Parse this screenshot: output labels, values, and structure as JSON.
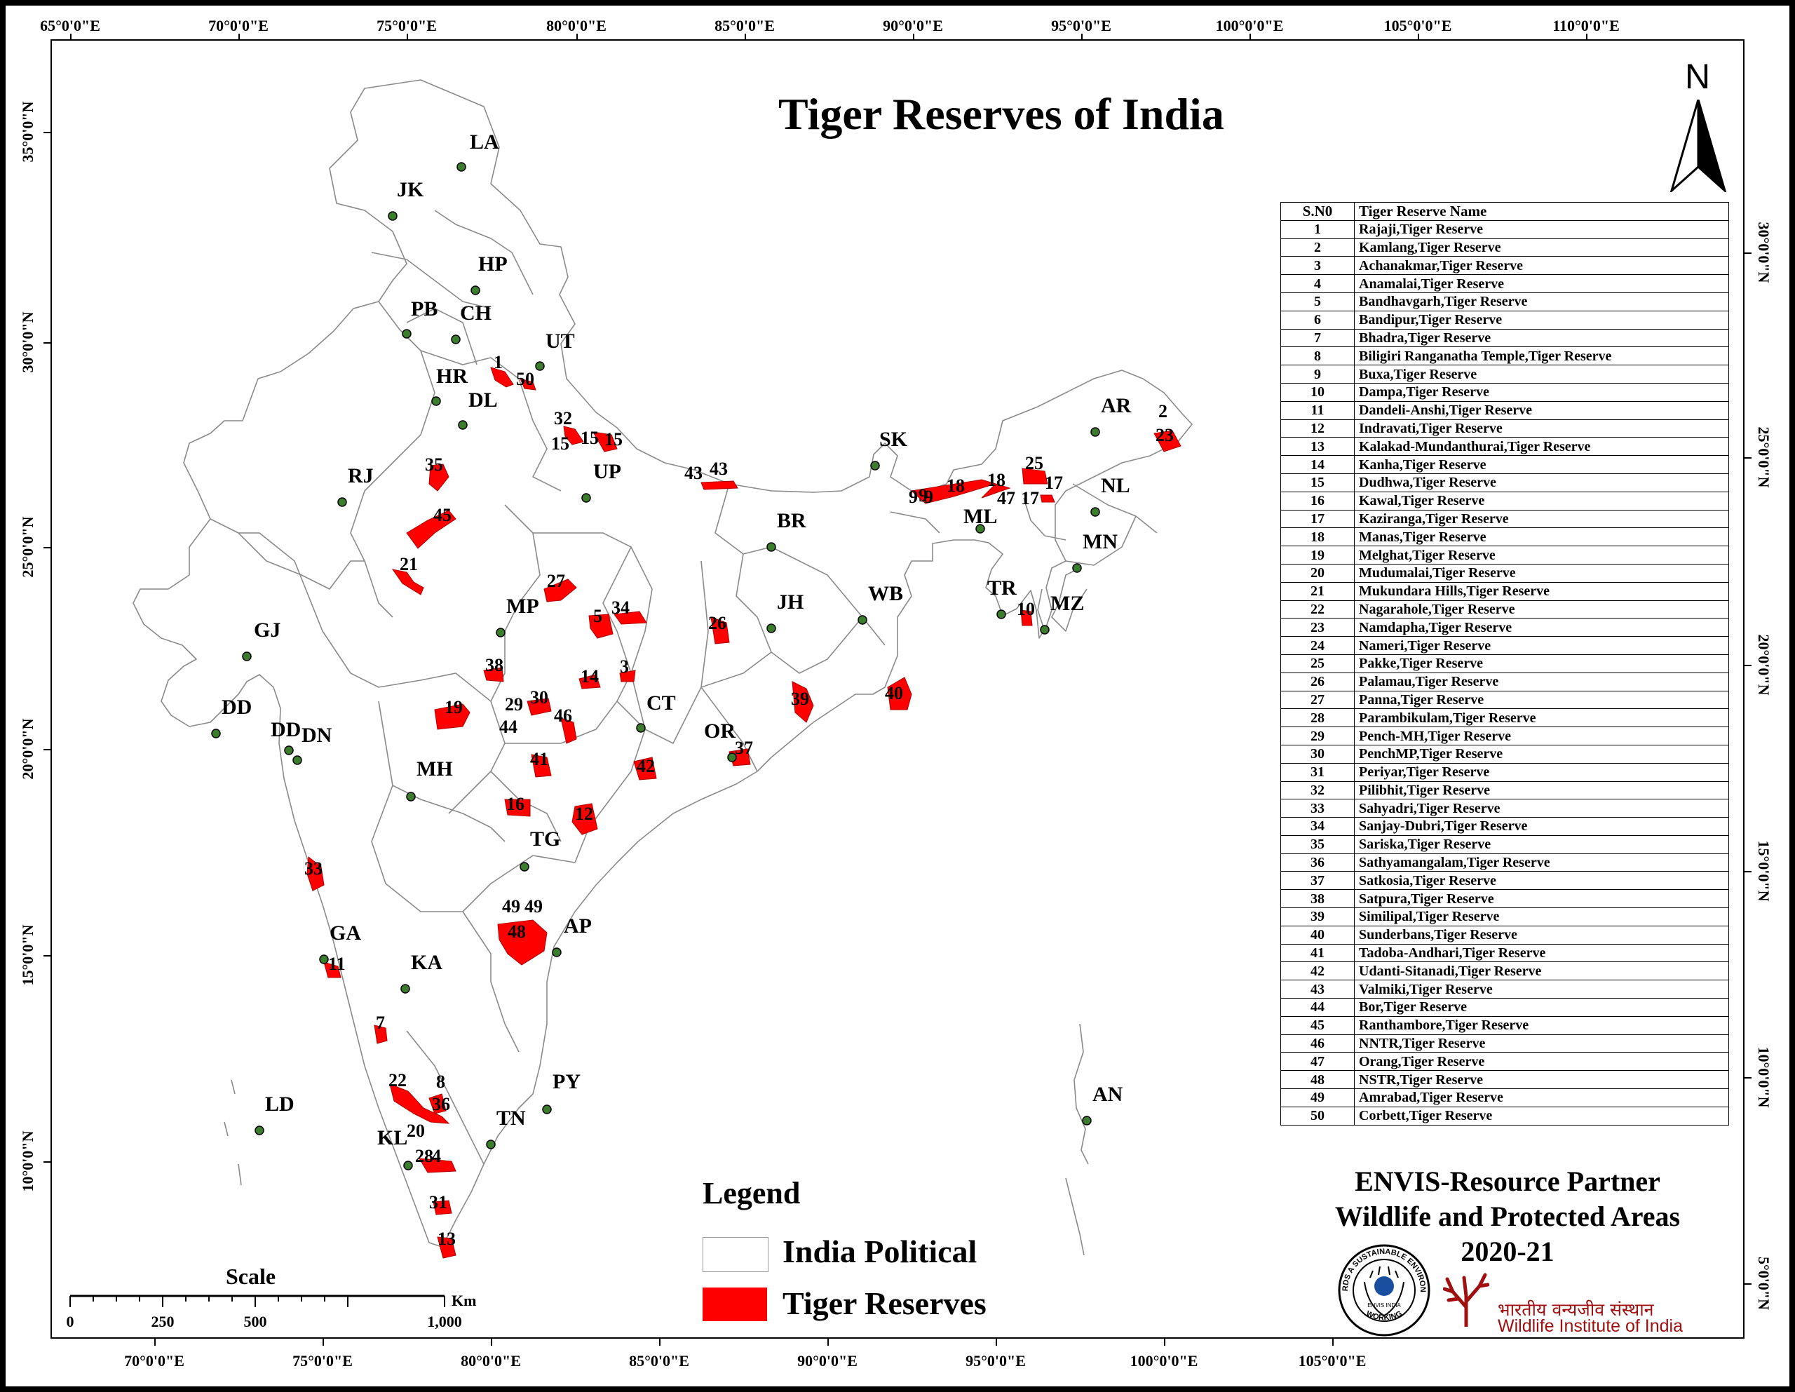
{
  "title": "Tiger Reserves of India",
  "north_label": "N",
  "axes": {
    "top": [
      "65°0'0\"E",
      "70°0'0\"E",
      "75°0'0\"E",
      "80°0'0\"E",
      "85°0'0\"E",
      "90°0'0\"E",
      "95°0'0\"E",
      "100°0'0\"E",
      "105°0'0\"E",
      "110°0'0\"E"
    ],
    "bottom": [
      "70°0'0\"E",
      "75°0'0\"E",
      "80°0'0\"E",
      "85°0'0\"E",
      "90°0'0\"E",
      "95°0'0\"E",
      "100°0'0\"E",
      "105°0'0\"E"
    ],
    "left": [
      "35°0'0\"N",
      "30°0'0\"N",
      "25°0'0\"N",
      "20°0'0\"N",
      "15°0'0\"N",
      "10°0'0\"N"
    ],
    "right": [
      "30°0'0\"N",
      "25°0'0\"N",
      "20°0'0\"N",
      "15°0'0\"N",
      "10°0'0\"N",
      "5°0'0\"N"
    ]
  },
  "states": [
    "LA",
    "JK",
    "HP",
    "PB",
    "CH",
    "UT",
    "HR",
    "DL",
    "RJ",
    "UP",
    "SK",
    "AR",
    "NL",
    "ML",
    "MN",
    "BR",
    "TR",
    "MZ",
    "GJ",
    "MP",
    "JH",
    "WB",
    "DD",
    "DD",
    "DN",
    "CT",
    "OR",
    "MH",
    "TG",
    "AP",
    "GA",
    "KA",
    "LD",
    "PY",
    "TN",
    "KL",
    "AN"
  ],
  "reserve_labels": [
    "1",
    "50",
    "32",
    "15",
    "15",
    "15",
    "43",
    "43",
    "35",
    "45",
    "21",
    "27",
    "5",
    "34",
    "26",
    "38",
    "14",
    "3",
    "19",
    "29",
    "30",
    "44",
    "46",
    "39",
    "40",
    "41",
    "42",
    "37",
    "16",
    "12",
    "33",
    "49",
    "49",
    "48",
    "11",
    "7",
    "22",
    "8",
    "9",
    "36",
    "20",
    "28",
    "4",
    "31",
    "13",
    "9",
    "9",
    "18",
    "18",
    "25",
    "17",
    "17",
    "47",
    "2",
    "23",
    "10"
  ],
  "table": {
    "header": [
      "S.N0",
      "Tiger Reserve Name"
    ],
    "rows": [
      [
        "1",
        "Rajaji,Tiger Reserve"
      ],
      [
        "2",
        "Kamlang,Tiger Reserve"
      ],
      [
        "3",
        "Achanakmar,Tiger Reserve"
      ],
      [
        "4",
        "Anamalai,Tiger Reserve"
      ],
      [
        "5",
        "Bandhavgarh,Tiger Reserve"
      ],
      [
        "6",
        "Bandipur,Tiger Reserve"
      ],
      [
        "7",
        "Bhadra,Tiger Reserve"
      ],
      [
        "8",
        "Biligiri Ranganatha Temple,Tiger Reserve"
      ],
      [
        "9",
        "Buxa,Tiger Reserve"
      ],
      [
        "10",
        "Dampa,Tiger Reserve"
      ],
      [
        "11",
        "Dandeli-Anshi,Tiger Reserve"
      ],
      [
        "12",
        "Indravati,Tiger Reserve"
      ],
      [
        "13",
        "Kalakad-Mundanthurai,Tiger Reserve"
      ],
      [
        "14",
        "Kanha,Tiger Reserve"
      ],
      [
        "15",
        "Dudhwa,Tiger Reserve"
      ],
      [
        "16",
        "Kawal,Tiger Reserve"
      ],
      [
        "17",
        "Kaziranga,Tiger Reserve"
      ],
      [
        "18",
        "Manas,Tiger Reserve"
      ],
      [
        "19",
        "Melghat,Tiger Reserve"
      ],
      [
        "20",
        "Mudumalai,Tiger Reserve"
      ],
      [
        "21",
        "Mukundara Hills,Tiger Reserve"
      ],
      [
        "22",
        "Nagarahole,Tiger Reserve"
      ],
      [
        "23",
        "Namdapha,Tiger Reserve"
      ],
      [
        "24",
        "Nameri,Tiger Reserve"
      ],
      [
        "25",
        "Pakke,Tiger Reserve"
      ],
      [
        "26",
        "Palamau,Tiger Reserve"
      ],
      [
        "27",
        "Panna,Tiger Reserve"
      ],
      [
        "28",
        "Parambikulam,Tiger Reserve"
      ],
      [
        "29",
        "Pench-MH,Tiger Reserve"
      ],
      [
        "30",
        "PenchMP,Tiger Reserve"
      ],
      [
        "31",
        "Periyar,Tiger Reserve"
      ],
      [
        "32",
        "Pilibhit,Tiger Reserve"
      ],
      [
        "33",
        "Sahyadri,Tiger Reserve"
      ],
      [
        "34",
        "Sanjay-Dubri,Tiger Reserve"
      ],
      [
        "35",
        "Sariska,Tiger Reserve"
      ],
      [
        "36",
        "Sathyamangalam,Tiger Reserve"
      ],
      [
        "37",
        "Satkosia,Tiger Reserve"
      ],
      [
        "38",
        "Satpura,Tiger Reserve"
      ],
      [
        "39",
        "Similipal,Tiger Reserve"
      ],
      [
        "40",
        "Sunderbans,Tiger Reserve"
      ],
      [
        "41",
        "Tadoba-Andhari,Tiger Reserve"
      ],
      [
        "42",
        "Udanti-Sitanadi,Tiger Reserve"
      ],
      [
        "43",
        "Valmiki,Tiger Reserve"
      ],
      [
        "44",
        "Bor,Tiger Reserve"
      ],
      [
        "45",
        "Ranthambore,Tiger Reserve"
      ],
      [
        "46",
        "NNTR,Tiger Reserve"
      ],
      [
        "47",
        "Orang,Tiger Reserve"
      ],
      [
        "48",
        "NSTR,Tiger Reserve"
      ],
      [
        "49",
        "Amrabad,Tiger Reserve"
      ],
      [
        "50",
        "Corbett,Tiger Reserve"
      ]
    ]
  },
  "credit": {
    "line1": "ENVIS-Resource Partner",
    "line2": "Wildlife and Protected Areas",
    "line3": "2020-21"
  },
  "legend": {
    "title": "Legend",
    "items": [
      {
        "label": "India Political",
        "color": "#ffffff"
      },
      {
        "label": "Tiger Reserves",
        "color": "#ff0000"
      }
    ]
  },
  "scale": {
    "title": "Scale",
    "unit": "Km",
    "ticks": [
      "0",
      "250",
      "500",
      "1,000"
    ]
  },
  "logos": {
    "envis_text": "TOWARDS A SUSTAINABLE ENVIRONMENT",
    "envis_text2": "WORKING",
    "envis_center": "ENVIS INDIA",
    "wii_hindi": "भारतीय वन्यजीव संस्थान",
    "wii_english": "Wildlife Institute of India"
  },
  "colors": {
    "reserve": "#ff0000",
    "state_dot": "#3a7d2a",
    "border": "#808080",
    "wii_red": "#a01010"
  }
}
